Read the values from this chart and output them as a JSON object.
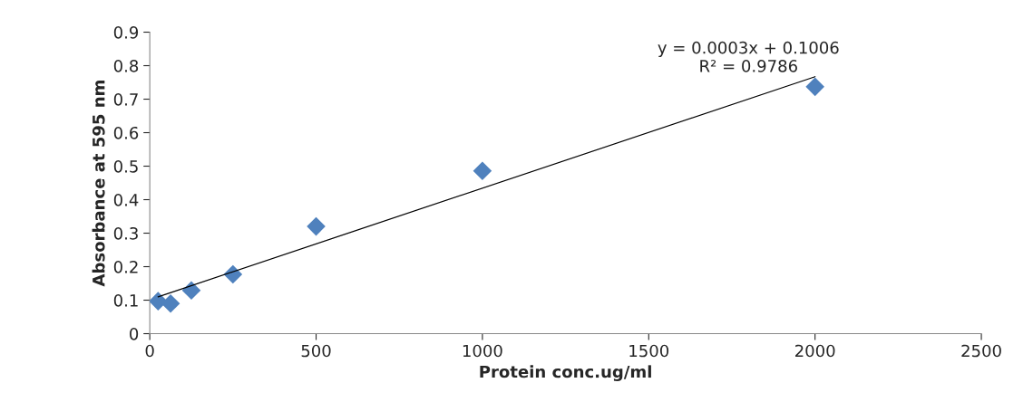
{
  "chart_data": {
    "type": "scatter",
    "xlabel": "Protein conc.ug/ml",
    "ylabel": "Absorbance at 595 nm",
    "x": [
      25,
      62.5,
      125,
      250,
      500,
      1000,
      2000
    ],
    "series": [
      {
        "color": "#4f81bd",
        "marker": "diamond",
        "values": [
          0.097,
          0.09,
          0.129,
          0.177,
          0.32,
          0.486,
          0.737
        ]
      },
      {
        "type": "line",
        "color": "#000000",
        "marker": "none",
        "x": [
          25,
          2000
        ],
        "values": [
          0.11,
          0.767
        ]
      }
    ],
    "xlim": [
      0,
      2500
    ],
    "xticks": [
      0,
      500,
      1000,
      1500,
      2000,
      2500
    ],
    "ylim": [
      0,
      0.9
    ],
    "yticks": [
      0,
      0.1,
      0.2,
      0.3,
      0.4,
      0.5,
      0.6,
      0.7,
      0.8,
      0.9
    ],
    "grid": false,
    "legend": false,
    "annotations": [
      "y = 0.0003x + 0.1006\nR² = 0.9786"
    ]
  }
}
